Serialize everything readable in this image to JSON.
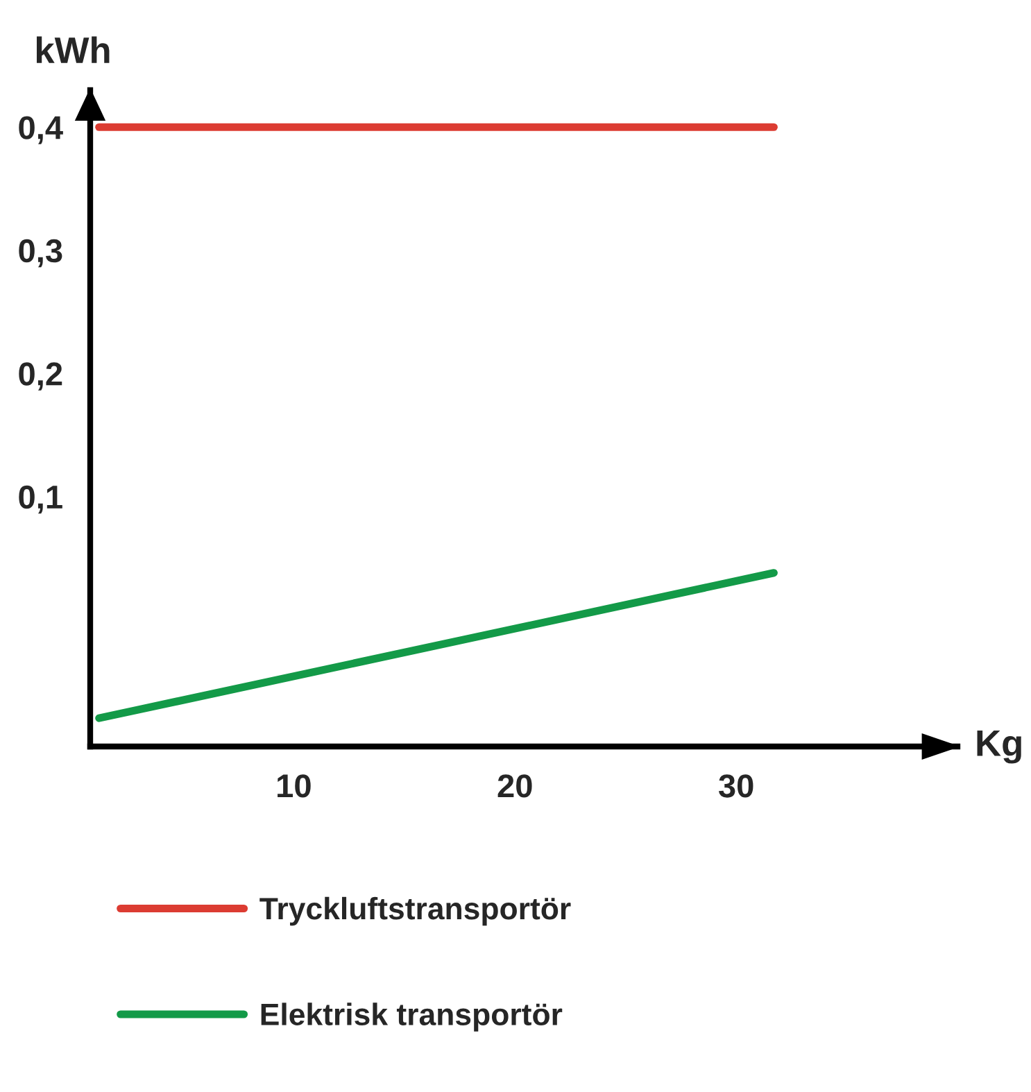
{
  "chart_data": {
    "type": "line",
    "xlabel": "Kg",
    "ylabel": "kWh",
    "x": [
      1.2,
      31.7
    ],
    "series": [
      {
        "name": "Tryckluftstransportör",
        "color": "#dc3c32",
        "values": [
          0.4,
          0.4
        ]
      },
      {
        "name": "Elektrisk transportör",
        "color": "#139a48",
        "values": [
          -0.08,
          0.038
        ]
      }
    ],
    "xlim": [
      0.8,
      40
    ],
    "ylim": [
      -0.103,
      0.43
    ],
    "xticks": [
      10,
      20,
      30
    ],
    "yticks": [
      {
        "value": 0.1,
        "label": "0,1"
      },
      {
        "value": 0.2,
        "label": "0,2"
      },
      {
        "value": 0.3,
        "label": "0,3"
      },
      {
        "value": 0.4,
        "label": "0,4"
      }
    ],
    "grid": false,
    "legend": "bottom",
    "marker": "none",
    "line_style": "solid"
  }
}
